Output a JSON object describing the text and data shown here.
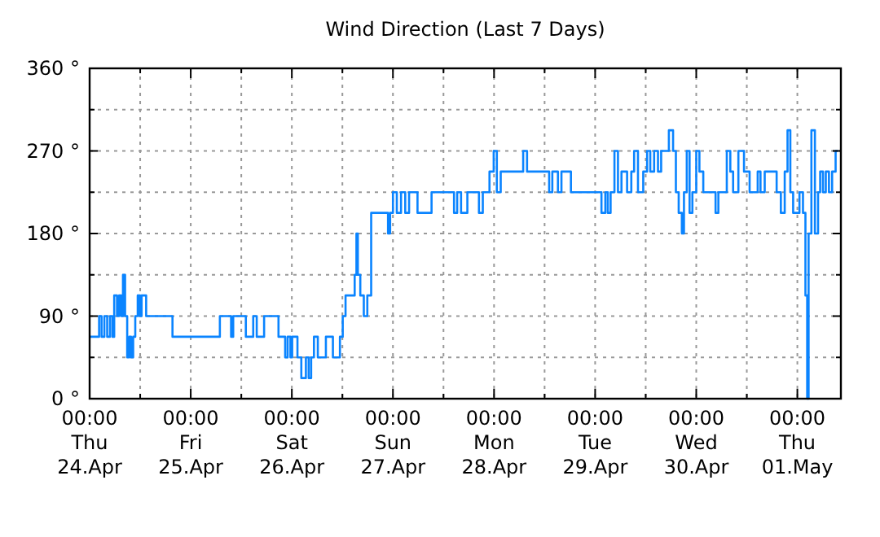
{
  "chart_data": {
    "type": "step",
    "title": "Wind Direction (Last 7 Days)",
    "x": [
      "--04-24T00:00",
      "--04-24T02:15",
      "--04-24T02:50",
      "--04-24T03:30",
      "--04-24T04:10",
      "--04-24T04:50",
      "--04-24T05:25",
      "--04-24T05:50",
      "--04-24T06:30",
      "--04-24T07:00",
      "--04-24T07:30",
      "--04-24T07:55",
      "--04-24T08:25",
      "--04-24T08:55",
      "--04-24T09:25",
      "--04-24T09:50",
      "--04-24T10:20",
      "--04-24T10:50",
      "--04-24T11:25",
      "--04-24T11:55",
      "--04-24T12:20",
      "--04-24T13:25",
      "--04-24T19:40",
      "--04-25T06:55",
      "--04-25T09:35",
      "--04-25T10:05",
      "--04-25T13:05",
      "--04-25T14:50",
      "--04-25T15:40",
      "--04-25T17:25",
      "--04-25T20:50",
      "--04-25T22:25",
      "--04-25T23:00",
      "--04-25T23:40",
      "--04-26T00:05",
      "--04-26T01:20",
      "--04-26T02:15",
      "--04-26T03:20",
      "--04-26T04:00",
      "--04-26T04:35",
      "--04-26T05:15",
      "--04-26T06:10",
      "--04-26T08:05",
      "--04-26T09:45",
      "--04-26T11:25",
      "--04-26T12:05",
      "--04-26T12:45",
      "--04-26T14:55",
      "--04-26T15:20",
      "--04-26T15:40",
      "--04-26T16:15",
      "--04-26T17:05",
      "--04-26T17:55",
      "--04-26T18:50",
      "--04-26T22:50",
      "--04-26T23:20",
      "--04-27T00:00",
      "--04-27T00:55",
      "--04-27T01:55",
      "--04-27T02:55",
      "--04-27T03:50",
      "--04-27T05:50",
      "--04-27T09:10",
      "--04-27T14:30",
      "--04-27T15:15",
      "--04-27T16:10",
      "--04-27T17:40",
      "--04-27T20:25",
      "--04-27T21:20",
      "--04-27T22:55",
      "--04-27T23:55",
      "--04-28T00:40",
      "--04-28T01:35",
      "--04-28T06:55",
      "--04-28T07:50",
      "--04-28T13:05",
      "--04-28T13:50",
      "--04-28T15:10",
      "--04-28T16:00",
      "--04-28T18:15",
      "--04-29T01:30",
      "--04-29T02:25",
      "--04-29T03:00",
      "--04-29T03:40",
      "--04-29T04:35",
      "--04-29T05:25",
      "--04-29T06:15",
      "--04-29T07:35",
      "--04-29T08:35",
      "--04-29T09:15",
      "--04-29T10:10",
      "--04-29T11:25",
      "--04-29T12:20",
      "--04-29T13:05",
      "--04-29T14:00",
      "--04-29T14:55",
      "--04-29T15:40",
      "--04-29T17:30",
      "--04-29T18:30",
      "--04-29T19:10",
      "--04-29T19:50",
      "--04-29T20:35",
      "--04-29T21:05",
      "--04-29T21:45",
      "--04-29T22:25",
      "--04-29T23:05",
      "--04-30T00:00",
      "--04-30T00:45",
      "--04-30T01:40",
      "--04-30T04:35",
      "--04-30T05:15",
      "--04-30T07:15",
      "--04-30T08:05",
      "--04-30T08:45",
      "--04-30T10:00",
      "--04-30T11:20",
      "--04-30T12:40",
      "--04-30T14:35",
      "--04-30T15:15",
      "--04-30T16:15",
      "--04-30T19:05",
      "--04-30T20:05",
      "--04-30T21:00",
      "--04-30T21:40",
      "--04-30T22:20",
      "--04-30T23:00",
      "--05-01T00:30",
      "--05-01T01:20",
      "--05-01T01:55",
      "--05-01T02:20",
      "--05-01T02:40",
      "--05-01T03:20",
      "--05-01T04:10",
      "--05-01T04:55",
      "--05-01T05:25",
      "--05-01T06:05",
      "--05-01T06:45",
      "--05-01T07:30",
      "--05-01T08:15",
      "--05-01T09:05",
      "--05-01T09:35"
    ],
    "values": [
      67.5,
      90,
      67.5,
      90,
      67.5,
      90,
      67.5,
      112.5,
      90,
      112.5,
      90,
      135,
      90,
      45,
      67.5,
      45,
      67.5,
      90,
      112.5,
      90,
      112.5,
      90,
      67.5,
      90,
      67.5,
      90,
      67.5,
      90,
      67.5,
      90,
      67.5,
      45,
      67.5,
      45,
      67.5,
      45,
      22.5,
      45,
      22.5,
      45,
      67.5,
      45,
      67.5,
      45,
      67.5,
      90,
      112.5,
      135,
      180,
      135,
      112.5,
      90,
      112.5,
      202.5,
      180,
      202.5,
      225,
      202.5,
      225,
      202.5,
      225,
      202.5,
      225,
      202.5,
      225,
      202.5,
      225,
      202.5,
      225,
      247.5,
      270,
      225,
      247.5,
      270,
      247.5,
      225,
      247.5,
      225,
      247.5,
      225,
      202.5,
      225,
      202.5,
      225,
      270,
      225,
      247.5,
      225,
      247.5,
      270,
      225,
      247.5,
      270,
      247.5,
      270,
      247.5,
      270,
      292.5,
      270,
      225,
      202.5,
      180,
      225,
      270,
      202.5,
      225,
      270,
      247.5,
      225,
      202.5,
      225,
      270,
      247.5,
      225,
      270,
      247.5,
      225,
      247.5,
      225,
      247.5,
      225,
      202.5,
      247.5,
      292.5,
      225,
      202.5,
      225,
      202.5,
      112.5,
      0,
      180,
      292.5,
      180,
      225,
      247.5,
      225,
      247.5,
      225,
      247.5,
      270,
      270
    ],
    "color": "#0a84ff",
    "xlim": [
      "--04-24T00:00",
      "--05-01T10:20"
    ],
    "xticks": [
      {
        "value": "--04-24T00:00",
        "label": "00:00\nThu\n24.Apr"
      },
      {
        "value": "--04-24T12:00",
        "label": null
      },
      {
        "value": "--04-25T00:00",
        "label": "00:00\nFri\n25.Apr"
      },
      {
        "value": "--04-25T12:00",
        "label": null
      },
      {
        "value": "--04-26T00:00",
        "label": "00:00\nSat\n26.Apr"
      },
      {
        "value": "--04-26T12:00",
        "label": null
      },
      {
        "value": "--04-27T00:00",
        "label": "00:00\nSun\n27.Apr"
      },
      {
        "value": "--04-27T12:00",
        "label": null
      },
      {
        "value": "--04-28T00:00",
        "label": "00:00\nMon\n28.Apr"
      },
      {
        "value": "--04-28T12:00",
        "label": null
      },
      {
        "value": "--04-29T00:00",
        "label": "00:00\nTue\n29.Apr"
      },
      {
        "value": "--04-29T12:00",
        "label": null
      },
      {
        "value": "--04-30T00:00",
        "label": "00:00\nWed\n30.Apr"
      },
      {
        "value": "--04-30T12:00",
        "label": null
      },
      {
        "value": "--05-01T00:00",
        "label": "00:00\nThu\n01.May"
      }
    ],
    "ylim": [
      0,
      360
    ],
    "yticks": [
      {
        "value": 0,
        "label": "0 °"
      },
      {
        "value": 45,
        "label": null
      },
      {
        "value": 90,
        "label": "90 °"
      },
      {
        "value": 135,
        "label": null
      },
      {
        "value": 180,
        "label": "180 °"
      },
      {
        "value": 225,
        "label": null
      },
      {
        "value": 270,
        "label": "270 °"
      },
      {
        "value": 315,
        "label": null
      },
      {
        "value": 360,
        "label": "360 °"
      }
    ],
    "grid": true,
    "marker": "none",
    "line_style": "solid"
  }
}
